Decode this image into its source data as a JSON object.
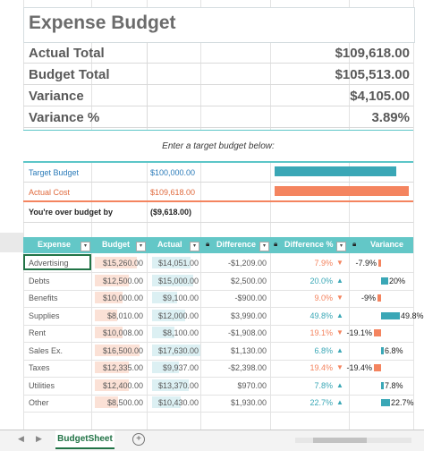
{
  "title": "Expense Budget",
  "summary": [
    {
      "label": "Actual Total",
      "value": "$109,618.00"
    },
    {
      "label": "Budget Total",
      "value": "$105,513.00"
    },
    {
      "label": "Variance",
      "value": "$4,105.00"
    },
    {
      "label": "Variance %",
      "value": "3.89%"
    }
  ],
  "prompt": "Enter a target budget below:",
  "target": {
    "label": "Target Budget",
    "value": "$100,000.00"
  },
  "actual": {
    "label": "Actual Cost",
    "value": "$109,618.00"
  },
  "over": {
    "label": "You're over budget by",
    "value": "($9,618.00)"
  },
  "colors": {
    "teal": "#5cc6c8",
    "orange": "#f4845f",
    "blue": "#3aa7b6",
    "text": "#595959"
  },
  "headers": {
    "expense": "Expense",
    "budget": "Budget",
    "actual": "Actual",
    "difference": "Difference",
    "difference_pct": "Difference %",
    "variance": "Variance"
  },
  "rows": [
    {
      "expense": "Advertising",
      "budget": "$15,260.00",
      "actual": "$14,051.00",
      "difference": "-$1,209.00",
      "pct": "7.9%",
      "dir": "down",
      "variance": "-7.9%",
      "vnum": -7.9
    },
    {
      "expense": "Debts",
      "budget": "$12,500.00",
      "actual": "$15,000.00",
      "difference": "$2,500.00",
      "pct": "20.0%",
      "dir": "up",
      "variance": "20%",
      "vnum": 20
    },
    {
      "expense": "Benefits",
      "budget": "$10,000.00",
      "actual": "$9,100.00",
      "difference": "-$900.00",
      "pct": "9.0%",
      "dir": "down",
      "variance": "-9%",
      "vnum": -9
    },
    {
      "expense": "Supplies",
      "budget": "$8,010.00",
      "actual": "$12,000.00",
      "difference": "$3,990.00",
      "pct": "49.8%",
      "dir": "up",
      "variance": "49.8%",
      "vnum": 49.8
    },
    {
      "expense": "Rent",
      "budget": "$10,008.00",
      "actual": "$8,100.00",
      "difference": "-$1,908.00",
      "pct": "19.1%",
      "dir": "down",
      "variance": "-19.1%",
      "vnum": -19.1
    },
    {
      "expense": "Sales Ex.",
      "budget": "$16,500.00",
      "actual": "$17,630.00",
      "difference": "$1,130.00",
      "pct": "6.8%",
      "dir": "up",
      "variance": "6.8%",
      "vnum": 6.8
    },
    {
      "expense": "Taxes",
      "budget": "$12,335.00",
      "actual": "$9,937.00",
      "difference": "-$2,398.00",
      "pct": "19.4%",
      "dir": "down",
      "variance": "-19.4%",
      "vnum": -19.4
    },
    {
      "expense": "Utilities",
      "budget": "$12,400.00",
      "actual": "$13,370.00",
      "difference": "$970.00",
      "pct": "7.8%",
      "dir": "up",
      "variance": "7.8%",
      "vnum": 7.8
    },
    {
      "expense": "Other",
      "budget": "$8,500.00",
      "actual": "$10,430.00",
      "difference": "$1,930.00",
      "pct": "22.7%",
      "dir": "up",
      "variance": "22.7%",
      "vnum": 22.7
    }
  ],
  "sheet_tab": "BudgetSheet",
  "icons": {
    "up": "triangle-up-icon",
    "down": "triangle-down-icon",
    "lock": "lock-icon",
    "filter": "dropdown-icon"
  }
}
